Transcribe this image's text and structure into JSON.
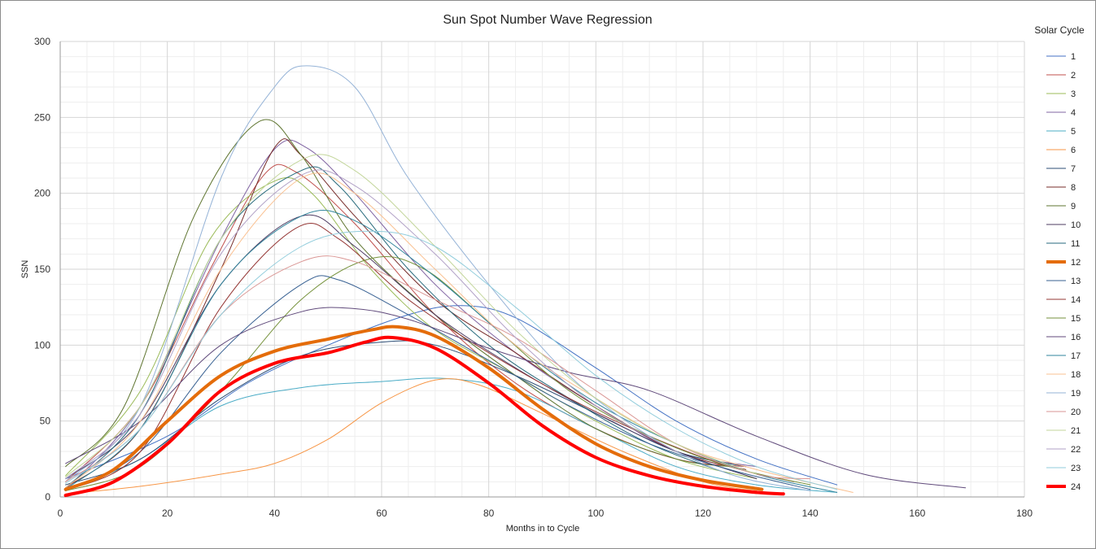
{
  "chart_data": {
    "type": "line",
    "title": "Sun Spot Number Wave Regression",
    "xlabel": "Months in to Cycle",
    "ylabel": "SSN",
    "xlim": [
      0,
      180
    ],
    "ylim": [
      0,
      300
    ],
    "x_ticks": [
      0,
      20,
      40,
      60,
      80,
      100,
      120,
      140,
      160,
      180
    ],
    "y_ticks": [
      0,
      50,
      100,
      150,
      200,
      250,
      300
    ],
    "x_tick_labels": [
      "0",
      "20",
      "40",
      "60",
      "80",
      "100",
      "120",
      "140",
      "160",
      "180"
    ],
    "y_tick_labels": [
      "0",
      "50",
      "100",
      "150",
      "200",
      "250",
      "300"
    ],
    "grid": true,
    "legend_title": "Solar Cycle",
    "legend_position": "right",
    "series": [
      {
        "name": "1",
        "color": "#4472C4",
        "width": 1,
        "points": [
          [
            1,
            12
          ],
          [
            20,
            40
          ],
          [
            35,
            75
          ],
          [
            50,
            100
          ],
          [
            65,
            120
          ],
          [
            75,
            126
          ],
          [
            85,
            118
          ],
          [
            100,
            85
          ],
          [
            115,
            50
          ],
          [
            130,
            25
          ],
          [
            145,
            8
          ]
        ]
      },
      {
        "name": "2",
        "color": "#C0504D",
        "width": 1,
        "points": [
          [
            1,
            10
          ],
          [
            15,
            60
          ],
          [
            28,
            150
          ],
          [
            38,
            212
          ],
          [
            44,
            214
          ],
          [
            55,
            180
          ],
          [
            70,
            120
          ],
          [
            85,
            75
          ],
          [
            100,
            45
          ],
          [
            115,
            25
          ],
          [
            128,
            20
          ]
        ]
      },
      {
        "name": "3",
        "color": "#9BBB59",
        "width": 1,
        "points": [
          [
            1,
            14
          ],
          [
            15,
            70
          ],
          [
            28,
            170
          ],
          [
            40,
            208
          ],
          [
            47,
            200
          ],
          [
            58,
            150
          ],
          [
            70,
            110
          ],
          [
            85,
            80
          ],
          [
            100,
            50
          ],
          [
            115,
            25
          ],
          [
            130,
            12
          ]
        ]
      },
      {
        "name": "4",
        "color": "#8064A2",
        "width": 1,
        "points": [
          [
            1,
            5
          ],
          [
            15,
            60
          ],
          [
            30,
            170
          ],
          [
            40,
            229
          ],
          [
            46,
            230
          ],
          [
            55,
            200
          ],
          [
            70,
            140
          ],
          [
            85,
            95
          ],
          [
            100,
            60
          ],
          [
            115,
            30
          ],
          [
            130,
            20
          ]
        ]
      },
      {
        "name": "5",
        "color": "#4BACC6",
        "width": 1,
        "points": [
          [
            1,
            4
          ],
          [
            15,
            25
          ],
          [
            30,
            60
          ],
          [
            45,
            72
          ],
          [
            60,
            76
          ],
          [
            72,
            78
          ],
          [
            85,
            70
          ],
          [
            100,
            45
          ],
          [
            115,
            20
          ],
          [
            130,
            8
          ],
          [
            145,
            3
          ]
        ]
      },
      {
        "name": "6",
        "color": "#F79646",
        "width": 1,
        "points": [
          [
            1,
            2
          ],
          [
            15,
            7
          ],
          [
            30,
            15
          ],
          [
            40,
            22
          ],
          [
            50,
            38
          ],
          [
            60,
            62
          ],
          [
            70,
            77
          ],
          [
            78,
            74
          ],
          [
            90,
            55
          ],
          [
            105,
            30
          ],
          [
            120,
            10
          ],
          [
            130,
            4
          ]
        ]
      },
      {
        "name": "7",
        "color": "#2C4D75",
        "width": 1,
        "points": [
          [
            1,
            8
          ],
          [
            15,
            25
          ],
          [
            30,
            65
          ],
          [
            45,
            93
          ],
          [
            60,
            102
          ],
          [
            70,
            100
          ],
          [
            85,
            80
          ],
          [
            100,
            55
          ],
          [
            115,
            30
          ],
          [
            128,
            20
          ]
        ]
      },
      {
        "name": "8",
        "color": "#772C2A",
        "width": 1,
        "points": [
          [
            1,
            6
          ],
          [
            15,
            45
          ],
          [
            30,
            150
          ],
          [
            40,
            230
          ],
          [
            45,
            225
          ],
          [
            55,
            185
          ],
          [
            70,
            130
          ],
          [
            85,
            95
          ],
          [
            100,
            60
          ],
          [
            115,
            30
          ],
          [
            128,
            18
          ]
        ]
      },
      {
        "name": "9",
        "color": "#5F7530",
        "width": 1,
        "points": [
          [
            1,
            20
          ],
          [
            12,
            60
          ],
          [
            25,
            185
          ],
          [
            37,
            247
          ],
          [
            45,
            225
          ],
          [
            55,
            170
          ],
          [
            70,
            120
          ],
          [
            85,
            80
          ],
          [
            100,
            45
          ],
          [
            115,
            25
          ],
          [
            125,
            20
          ]
        ]
      },
      {
        "name": "10",
        "color": "#4D3B62",
        "width": 1,
        "points": [
          [
            1,
            12
          ],
          [
            15,
            50
          ],
          [
            30,
            140
          ],
          [
            45,
            185
          ],
          [
            55,
            165
          ],
          [
            70,
            120
          ],
          [
            85,
            85
          ],
          [
            100,
            55
          ],
          [
            115,
            30
          ],
          [
            130,
            12
          ]
        ]
      },
      {
        "name": "11",
        "color": "#276A7C",
        "width": 1,
        "points": [
          [
            1,
            6
          ],
          [
            15,
            55
          ],
          [
            30,
            170
          ],
          [
            45,
            215
          ],
          [
            52,
            205
          ],
          [
            65,
            150
          ],
          [
            80,
            100
          ],
          [
            95,
            65
          ],
          [
            110,
            35
          ],
          [
            125,
            15
          ]
        ]
      },
      {
        "name": "12",
        "color": "#E46C0A",
        "width": 4,
        "points": [
          [
            1,
            5
          ],
          [
            10,
            18
          ],
          [
            20,
            50
          ],
          [
            30,
            80
          ],
          [
            40,
            96
          ],
          [
            50,
            104
          ],
          [
            58,
            110
          ],
          [
            63,
            112
          ],
          [
            70,
            106
          ],
          [
            80,
            85
          ],
          [
            90,
            58
          ],
          [
            100,
            35
          ],
          [
            110,
            20
          ],
          [
            120,
            11
          ],
          [
            131,
            5
          ]
        ]
      },
      {
        "name": "13",
        "color": "#376092",
        "width": 1,
        "points": [
          [
            1,
            4
          ],
          [
            15,
            30
          ],
          [
            30,
            95
          ],
          [
            45,
            140
          ],
          [
            52,
            143
          ],
          [
            65,
            120
          ],
          [
            80,
            90
          ],
          [
            95,
            60
          ],
          [
            110,
            35
          ],
          [
            125,
            18
          ],
          [
            140,
            5
          ]
        ]
      },
      {
        "name": "14",
        "color": "#953735",
        "width": 1,
        "points": [
          [
            1,
            4
          ],
          [
            15,
            30
          ],
          [
            30,
            125
          ],
          [
            44,
            177
          ],
          [
            52,
            170
          ],
          [
            65,
            130
          ],
          [
            80,
            95
          ],
          [
            95,
            65
          ],
          [
            110,
            40
          ],
          [
            125,
            20
          ],
          [
            137,
            10
          ]
        ]
      },
      {
        "name": "15",
        "color": "#76923C",
        "width": 1,
        "points": [
          [
            1,
            4
          ],
          [
            15,
            20
          ],
          [
            30,
            70
          ],
          [
            45,
            130
          ],
          [
            58,
            157
          ],
          [
            68,
            150
          ],
          [
            80,
            115
          ],
          [
            95,
            70
          ],
          [
            110,
            40
          ],
          [
            125,
            20
          ],
          [
            140,
            8
          ]
        ]
      },
      {
        "name": "16",
        "color": "#604A7B",
        "width": 1,
        "points": [
          [
            1,
            22
          ],
          [
            15,
            50
          ],
          [
            30,
            100
          ],
          [
            45,
            122
          ],
          [
            55,
            124
          ],
          [
            65,
            117
          ],
          [
            80,
            98
          ],
          [
            95,
            82
          ],
          [
            110,
            70
          ],
          [
            130,
            40
          ],
          [
            150,
            15
          ],
          [
            169,
            6
          ]
        ]
      },
      {
        "name": "17",
        "color": "#31859C",
        "width": 1,
        "points": [
          [
            1,
            5
          ],
          [
            15,
            45
          ],
          [
            30,
            140
          ],
          [
            45,
            185
          ],
          [
            55,
            182
          ],
          [
            70,
            145
          ],
          [
            85,
            100
          ],
          [
            100,
            62
          ],
          [
            115,
            35
          ],
          [
            130,
            15
          ],
          [
            145,
            3
          ]
        ]
      },
      {
        "name": "18",
        "color": "#FAC090",
        "width": 1,
        "points": [
          [
            1,
            6
          ],
          [
            15,
            50
          ],
          [
            30,
            150
          ],
          [
            45,
            210
          ],
          [
            55,
            200
          ],
          [
            70,
            150
          ],
          [
            85,
            100
          ],
          [
            100,
            65
          ],
          [
            115,
            35
          ],
          [
            130,
            18
          ],
          [
            148,
            3
          ]
        ]
      },
      {
        "name": "19",
        "color": "#95B3D7",
        "width": 1,
        "points": [
          [
            1,
            10
          ],
          [
            15,
            60
          ],
          [
            30,
            210
          ],
          [
            40,
            270
          ],
          [
            46,
            284
          ],
          [
            55,
            270
          ],
          [
            65,
            210
          ],
          [
            80,
            140
          ],
          [
            95,
            80
          ],
          [
            110,
            40
          ],
          [
            125,
            15
          ],
          [
            140,
            4
          ]
        ]
      },
      {
        "name": "20",
        "color": "#DA9694",
        "width": 1,
        "points": [
          [
            1,
            10
          ],
          [
            15,
            45
          ],
          [
            30,
            120
          ],
          [
            45,
            155
          ],
          [
            55,
            155
          ],
          [
            70,
            130
          ],
          [
            85,
            105
          ],
          [
            100,
            70
          ],
          [
            115,
            35
          ],
          [
            130,
            15
          ],
          [
            140,
            12
          ]
        ]
      },
      {
        "name": "21",
        "color": "#C3D69B",
        "width": 1,
        "points": [
          [
            1,
            13
          ],
          [
            15,
            60
          ],
          [
            30,
            170
          ],
          [
            45,
            222
          ],
          [
            55,
            215
          ],
          [
            70,
            165
          ],
          [
            85,
            110
          ],
          [
            100,
            65
          ],
          [
            115,
            35
          ],
          [
            130,
            15
          ]
        ]
      },
      {
        "name": "22",
        "color": "#B2A2C7",
        "width": 1,
        "points": [
          [
            1,
            12
          ],
          [
            15,
            55
          ],
          [
            30,
            160
          ],
          [
            45,
            212
          ],
          [
            55,
            205
          ],
          [
            70,
            160
          ],
          [
            85,
            105
          ],
          [
            100,
            60
          ],
          [
            115,
            30
          ]
        ]
      },
      {
        "name": "23",
        "color": "#92CDDC",
        "width": 1,
        "points": [
          [
            1,
            9
          ],
          [
            15,
            45
          ],
          [
            30,
            120
          ],
          [
            45,
            165
          ],
          [
            58,
            175
          ],
          [
            70,
            165
          ],
          [
            85,
            125
          ],
          [
            100,
            80
          ],
          [
            115,
            45
          ],
          [
            130,
            20
          ],
          [
            145,
            5
          ]
        ]
      },
      {
        "name": "24",
        "color": "#FF0000",
        "width": 4,
        "points": [
          [
            1,
            1
          ],
          [
            10,
            10
          ],
          [
            20,
            35
          ],
          [
            30,
            70
          ],
          [
            40,
            88
          ],
          [
            50,
            95
          ],
          [
            57,
            102
          ],
          [
            62,
            105
          ],
          [
            70,
            98
          ],
          [
            80,
            75
          ],
          [
            90,
            47
          ],
          [
            100,
            26
          ],
          [
            110,
            14
          ],
          [
            120,
            7
          ],
          [
            130,
            3
          ],
          [
            135,
            2
          ]
        ]
      }
    ]
  }
}
